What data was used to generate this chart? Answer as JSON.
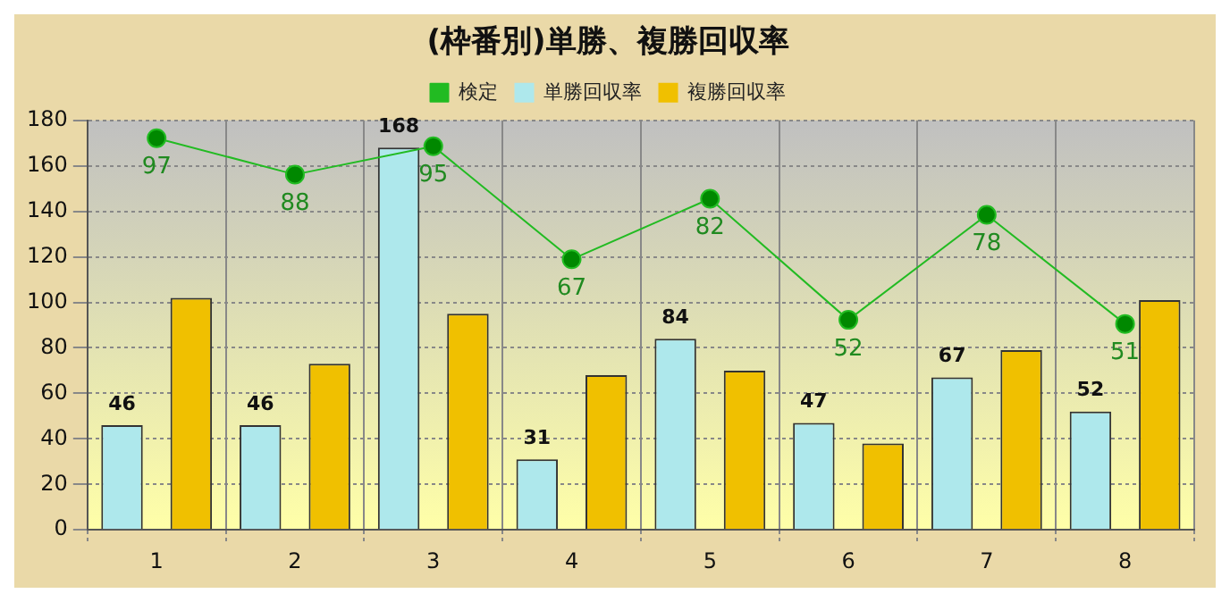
{
  "chart_data": {
    "type": "bar",
    "title": "(枠番別)単勝、複勝回収率",
    "categories": [
      "1",
      "2",
      "3",
      "4",
      "5",
      "6",
      "7",
      "8"
    ],
    "series": [
      {
        "name": "検定",
        "type": "line",
        "axis": "y2",
        "color": "#22bb22",
        "marker": "circle",
        "values": [
          97,
          88,
          95,
          67,
          82,
          52,
          78,
          51
        ],
        "value_labels": [
          "97",
          "88",
          "95",
          "67",
          "82",
          "52",
          "78",
          "51"
        ]
      },
      {
        "name": "単勝回収率",
        "color": "#aee8ec",
        "values": [
          46,
          46,
          168,
          31,
          84,
          47,
          67,
          52
        ],
        "value_labels": [
          "46",
          "46",
          "168",
          "31",
          "84",
          "47",
          "67",
          "52"
        ]
      },
      {
        "name": "複勝回収率",
        "color": "#f0c000",
        "values": [
          102,
          73,
          95,
          68,
          70,
          38,
          79,
          101
        ]
      }
    ],
    "ylim": [
      0,
      180
    ],
    "yticks": [
      0,
      20,
      40,
      60,
      80,
      100,
      120,
      140,
      160,
      180
    ],
    "y2lim": [
      0,
      101.4
    ],
    "grid": true,
    "legend": "top"
  }
}
